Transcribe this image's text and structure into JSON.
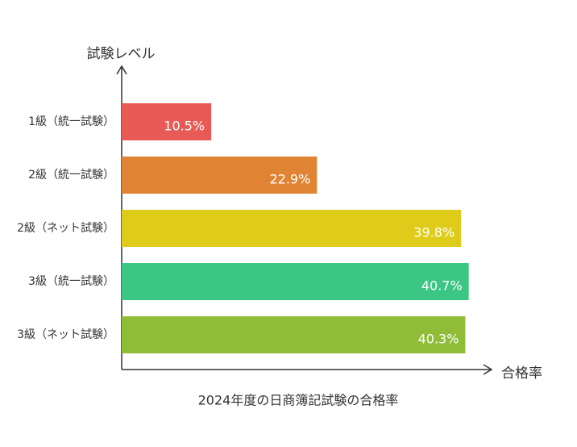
{
  "chart_data": {
    "type": "bar",
    "orientation": "horizontal",
    "title": "2024年度の日商簿記試験の合格率",
    "y_label": "試験レベル",
    "x_label": "合格率",
    "categories": [
      "1級（統一試験）",
      "2級（統一試験）",
      "2級（ネット試験）",
      "3級（統一試験）",
      "3級（ネット試験）"
    ],
    "values": [
      10.5,
      22.9,
      39.8,
      40.7,
      40.3
    ],
    "value_labels": [
      "10.5%",
      "22.9%",
      "39.8%",
      "40.7%",
      "40.3%"
    ],
    "colors": [
      "#e85a55",
      "#e08433",
      "#dfcc1a",
      "#3cc684",
      "#8fbd38"
    ],
    "xlim": [
      0,
      43
    ]
  }
}
